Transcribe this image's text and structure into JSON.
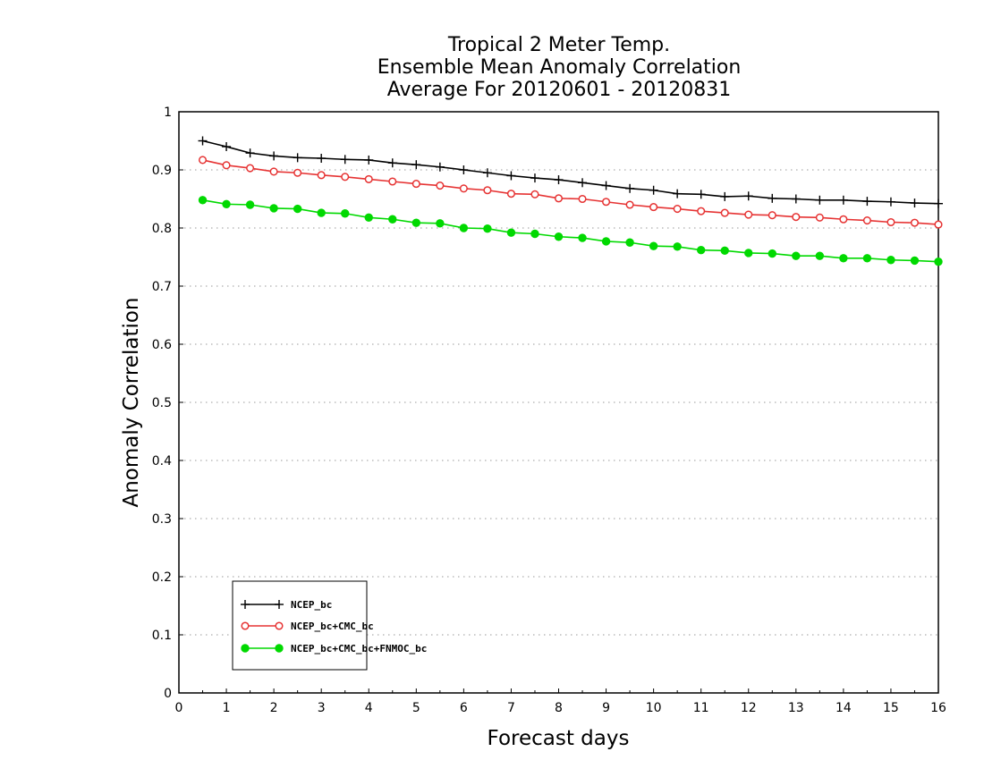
{
  "chart_data": {
    "type": "line",
    "title_lines": [
      "Tropical 2 Meter Temp.",
      "Ensemble Mean Anomaly Correlation",
      "Average For 20120601 - 20120831"
    ],
    "xlabel": "Forecast days",
    "ylabel": "Anomaly Correlation",
    "xlim": [
      0,
      16
    ],
    "ylim": [
      0,
      1
    ],
    "xticks": [
      0,
      1,
      2,
      3,
      4,
      5,
      6,
      7,
      8,
      9,
      10,
      11,
      12,
      13,
      14,
      15,
      16
    ],
    "yticks": [
      0,
      0.1,
      0.2,
      0.3,
      0.4,
      0.5,
      0.6,
      0.7,
      0.8,
      0.9,
      1
    ],
    "ytick_labels": [
      "0",
      "0.1",
      "0.2",
      "0.3",
      "0.4",
      "0.5",
      "0.6",
      "0.7",
      "0.8",
      "0.9",
      "1"
    ],
    "grid": "horizontal dotted",
    "legend_position": "bottom-left",
    "x": [
      0.5,
      1,
      1.5,
      2,
      2.5,
      3,
      3.5,
      4,
      4.5,
      5,
      5.5,
      6,
      6.5,
      7,
      7.5,
      8,
      8.5,
      9,
      9.5,
      10,
      10.5,
      11,
      11.5,
      12,
      12.5,
      13,
      13.5,
      14,
      14.5,
      15,
      15.5,
      16
    ],
    "series": [
      {
        "name": "NCEP_bc",
        "color": "#000000",
        "marker": "plus",
        "values": [
          0.95,
          0.94,
          0.929,
          0.924,
          0.921,
          0.92,
          0.918,
          0.917,
          0.912,
          0.909,
          0.905,
          0.9,
          0.895,
          0.89,
          0.886,
          0.883,
          0.878,
          0.873,
          0.868,
          0.865,
          0.859,
          0.858,
          0.854,
          0.855,
          0.851,
          0.85,
          0.848,
          0.848,
          0.846,
          0.845,
          0.843,
          0.842
        ]
      },
      {
        "name": "NCEP_bc+CMC_bc",
        "color": "#e63333",
        "marker": "open-circle",
        "values": [
          0.917,
          0.908,
          0.903,
          0.897,
          0.895,
          0.891,
          0.888,
          0.884,
          0.88,
          0.876,
          0.873,
          0.868,
          0.865,
          0.859,
          0.858,
          0.851,
          0.85,
          0.845,
          0.84,
          0.836,
          0.833,
          0.829,
          0.826,
          0.823,
          0.822,
          0.819,
          0.818,
          0.815,
          0.813,
          0.81,
          0.809,
          0.806
        ]
      },
      {
        "name": "NCEP_bc+CMC_bc+FNMOC_bc",
        "color": "#00d900",
        "marker": "filled-circle",
        "values": [
          0.848,
          0.841,
          0.84,
          0.834,
          0.833,
          0.826,
          0.825,
          0.818,
          0.815,
          0.809,
          0.808,
          0.8,
          0.799,
          0.792,
          0.79,
          0.785,
          0.783,
          0.777,
          0.775,
          0.769,
          0.768,
          0.762,
          0.761,
          0.757,
          0.756,
          0.752,
          0.752,
          0.748,
          0.748,
          0.745,
          0.744,
          0.742
        ]
      }
    ]
  }
}
